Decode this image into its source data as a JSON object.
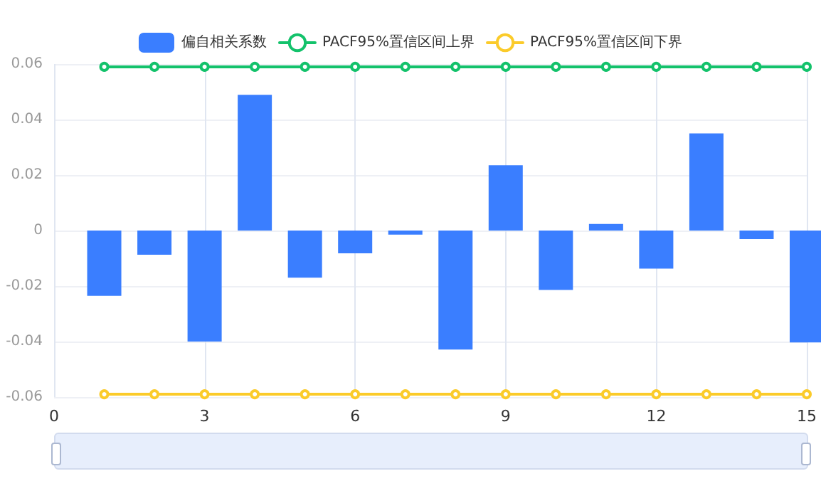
{
  "chart_data": {
    "type": "bar",
    "x": [
      1,
      2,
      3,
      4,
      5,
      6,
      7,
      8,
      9,
      10,
      11,
      12,
      13,
      14,
      15
    ],
    "series": [
      {
        "name": "偏自相关系数",
        "color": "#3a7eff",
        "values": [
          -0.0235,
          -0.0087,
          -0.04,
          0.0489,
          -0.017,
          -0.0082,
          -0.0015,
          -0.0429,
          0.0235,
          -0.0214,
          0.0024,
          -0.0137,
          0.035,
          -0.0031,
          -0.0403
        ]
      },
      {
        "name": "PACF95%置信区间上界",
        "type": "line",
        "color": "#13c26b",
        "values": [
          0.059,
          0.059,
          0.059,
          0.059,
          0.059,
          0.059,
          0.059,
          0.059,
          0.059,
          0.059,
          0.059,
          0.059,
          0.059,
          0.059,
          0.059
        ]
      },
      {
        "name": "PACF95%置信区间下界",
        "type": "line",
        "color": "#fbcb2a",
        "values": [
          -0.059,
          -0.059,
          -0.059,
          -0.059,
          -0.059,
          -0.059,
          -0.059,
          -0.059,
          -0.059,
          -0.059,
          -0.059,
          -0.059,
          -0.059,
          -0.059,
          -0.059
        ]
      }
    ],
    "xlim": [
      0,
      15
    ],
    "xticks": [
      0,
      3,
      6,
      9,
      12,
      15
    ],
    "ylim": [
      -0.06,
      0.06
    ],
    "yticks": [
      -0.06,
      -0.04,
      -0.02,
      0,
      0.02,
      0.04,
      0.06
    ],
    "grid": true,
    "legend": "top",
    "marker": "circle",
    "line_style": "solid"
  }
}
